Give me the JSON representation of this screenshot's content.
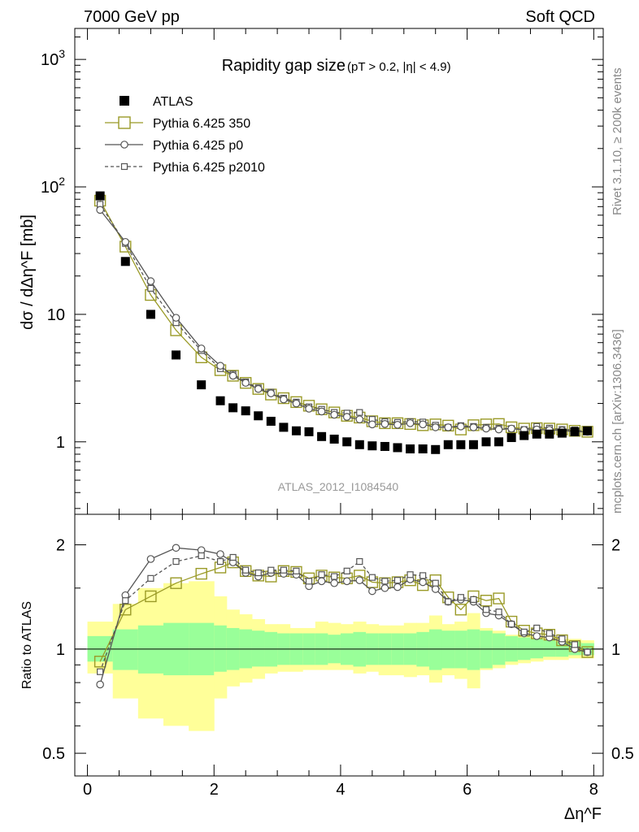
{
  "header": {
    "left": "7000 GeV pp",
    "right": "Soft QCD"
  },
  "side_labels": {
    "rivet": "Rivet 3.1.10, ≥ 200k events",
    "mcplots": "mcplots.cern.ch [arXiv:1306.3436]"
  },
  "analysis_tag": "ATLAS_2012_I1084540",
  "chart_data": [
    {
      "type": "scatter",
      "panel": "main",
      "title": "Rapidity gap size",
      "title_suffix": "(pT > 0.2, |η| < 4.9)",
      "ylabel": "dσ / dΔη^F [mb]",
      "xlabel": "Δη^F",
      "yscale": "log",
      "xlim": [
        -0.2,
        8.15
      ],
      "ylim": [
        0.27,
        1750
      ],
      "x_ticks": [
        "0",
        "2",
        "4",
        "6",
        "8"
      ],
      "y_ticks": [
        "1",
        "10",
        "10^2",
        "10^3"
      ],
      "legend_position": "top-left",
      "x": [
        0.2,
        0.6,
        1.0,
        1.4,
        1.8,
        2.1,
        2.3,
        2.5,
        2.7,
        2.9,
        3.1,
        3.3,
        3.5,
        3.7,
        3.9,
        4.1,
        4.3,
        4.5,
        4.7,
        4.9,
        5.1,
        5.3,
        5.5,
        5.7,
        5.9,
        6.1,
        6.3,
        6.5,
        6.7,
        6.9,
        7.1,
        7.3,
        7.5,
        7.7,
        7.9
      ],
      "series": [
        {
          "name": "ATLAS",
          "style": "filled-square",
          "color": "#000000",
          "values": [
            85,
            26,
            10,
            4.8,
            2.8,
            2.1,
            1.85,
            1.75,
            1.6,
            1.45,
            1.3,
            1.22,
            1.2,
            1.1,
            1.05,
            1.0,
            0.95,
            0.93,
            0.92,
            0.9,
            0.88,
            0.88,
            0.87,
            0.95,
            0.95,
            0.95,
            1.0,
            1.0,
            1.08,
            1.12,
            1.15,
            1.15,
            1.17,
            1.2,
            1.22
          ]
        },
        {
          "name": "Pythia 6.425 350",
          "style": "open-square-line",
          "color": "#9a9a27",
          "values": [
            78,
            34,
            14.2,
            7.5,
            4.6,
            3.65,
            3.3,
            2.9,
            2.6,
            2.35,
            2.2,
            2.05,
            1.92,
            1.8,
            1.7,
            1.6,
            1.55,
            1.45,
            1.4,
            1.4,
            1.38,
            1.35,
            1.37,
            1.34,
            1.25,
            1.35,
            1.37,
            1.38,
            1.3,
            1.27,
            1.28,
            1.27,
            1.25,
            1.22,
            1.2
          ]
        },
        {
          "name": "Pythia 6.425 p0",
          "style": "open-circle-line",
          "color": "#555555",
          "values": [
            66,
            37,
            18.2,
            9.4,
            5.4,
            3.95,
            3.3,
            2.9,
            2.6,
            2.4,
            2.15,
            2.0,
            1.82,
            1.73,
            1.63,
            1.57,
            1.5,
            1.37,
            1.38,
            1.36,
            1.4,
            1.37,
            1.3,
            1.3,
            1.32,
            1.3,
            1.27,
            1.25,
            1.27,
            1.24,
            1.25,
            1.24,
            1.23,
            1.2,
            1.2
          ]
        },
        {
          "name": "Pythia 6.425 p2010",
          "style": "open-square-dashed",
          "color": "#555555",
          "values": [
            73,
            36,
            16,
            8.6,
            5.2,
            3.75,
            3.4,
            2.95,
            2.65,
            2.45,
            2.2,
            2.05,
            1.88,
            1.8,
            1.7,
            1.68,
            1.7,
            1.5,
            1.44,
            1.42,
            1.44,
            1.43,
            1.35,
            1.3,
            1.34,
            1.32,
            1.3,
            1.28,
            1.27,
            1.25,
            1.32,
            1.28,
            1.25,
            1.24,
            1.2
          ]
        }
      ]
    },
    {
      "type": "line",
      "panel": "ratio",
      "ylabel": "Ratio to ATLAS",
      "yscale": "log",
      "xlim": [
        -0.2,
        8.15
      ],
      "ylim": [
        0.43,
        2.45
      ],
      "y_ticks": [
        "0.5",
        "1",
        "2"
      ],
      "reference_line": 1,
      "x": [
        0.2,
        0.6,
        1.0,
        1.4,
        1.8,
        2.1,
        2.3,
        2.5,
        2.7,
        2.9,
        3.1,
        3.3,
        3.5,
        3.7,
        3.9,
        4.1,
        4.3,
        4.5,
        4.7,
        4.9,
        5.1,
        5.3,
        5.5,
        5.7,
        5.9,
        6.1,
        6.3,
        6.5,
        6.7,
        6.9,
        7.1,
        7.3,
        7.5,
        7.7,
        7.9
      ],
      "bins": [
        0,
        0.4,
        0.8,
        1.2,
        1.6,
        2.0,
        2.2,
        2.4,
        2.6,
        2.8,
        3.0,
        3.2,
        3.4,
        3.6,
        3.8,
        4.0,
        4.2,
        4.4,
        4.6,
        4.8,
        5.0,
        5.2,
        5.4,
        5.6,
        5.8,
        6.0,
        6.2,
        6.4,
        6.6,
        6.8,
        7.0,
        7.2,
        7.4,
        7.6,
        7.8,
        8.0
      ],
      "band_stat_lo": [
        0.92,
        0.87,
        0.85,
        0.84,
        0.84,
        0.86,
        0.87,
        0.88,
        0.89,
        0.89,
        0.9,
        0.9,
        0.9,
        0.9,
        0.91,
        0.9,
        0.89,
        0.9,
        0.9,
        0.9,
        0.9,
        0.89,
        0.87,
        0.88,
        0.88,
        0.87,
        0.88,
        0.9,
        0.92,
        0.93,
        0.94,
        0.95,
        0.95,
        0.96,
        0.96
      ],
      "band_stat_hi": [
        1.09,
        1.14,
        1.17,
        1.19,
        1.19,
        1.17,
        1.15,
        1.14,
        1.13,
        1.12,
        1.11,
        1.11,
        1.11,
        1.11,
        1.1,
        1.11,
        1.12,
        1.11,
        1.11,
        1.11,
        1.11,
        1.12,
        1.14,
        1.13,
        1.13,
        1.14,
        1.13,
        1.11,
        1.09,
        1.08,
        1.07,
        1.06,
        1.05,
        1.05,
        1.04
      ],
      "band_total_lo": [
        0.85,
        0.72,
        0.63,
        0.6,
        0.58,
        0.72,
        0.78,
        0.8,
        0.82,
        0.85,
        0.86,
        0.86,
        0.87,
        0.87,
        0.87,
        0.87,
        0.85,
        0.86,
        0.84,
        0.84,
        0.83,
        0.84,
        0.8,
        0.84,
        0.82,
        0.77,
        0.87,
        0.88,
        0.9,
        0.91,
        0.92,
        0.93,
        0.93,
        0.94,
        0.94
      ],
      "band_total_hi": [
        1.2,
        1.35,
        1.5,
        1.55,
        1.57,
        1.42,
        1.3,
        1.26,
        1.22,
        1.18,
        1.18,
        1.15,
        1.15,
        1.2,
        1.19,
        1.18,
        1.2,
        1.18,
        1.17,
        1.17,
        1.19,
        1.19,
        1.25,
        1.18,
        1.2,
        1.27,
        1.15,
        1.13,
        1.1,
        1.1,
        1.09,
        1.08,
        1.07,
        1.07,
        1.06
      ],
      "series": [
        {
          "name": "Pythia 6.425 350",
          "style": "open-square-line",
          "color": "#9a9a27",
          "values": [
            0.92,
            1.3,
            1.42,
            1.55,
            1.65,
            1.72,
            1.78,
            1.68,
            1.63,
            1.62,
            1.68,
            1.67,
            1.6,
            1.63,
            1.61,
            1.6,
            1.63,
            1.56,
            1.55,
            1.56,
            1.58,
            1.53,
            1.58,
            1.41,
            1.3,
            1.42,
            1.38,
            1.4,
            1.2,
            1.13,
            1.11,
            1.1,
            1.06,
            1.02,
            0.98
          ]
        },
        {
          "name": "Pythia 6.425 p0",
          "style": "open-circle-line",
          "color": "#555555",
          "values": [
            0.79,
            1.43,
            1.82,
            1.96,
            1.93,
            1.88,
            1.78,
            1.66,
            1.62,
            1.66,
            1.65,
            1.64,
            1.52,
            1.57,
            1.55,
            1.57,
            1.58,
            1.47,
            1.5,
            1.51,
            1.59,
            1.56,
            1.49,
            1.37,
            1.39,
            1.37,
            1.27,
            1.25,
            1.18,
            1.11,
            1.09,
            1.08,
            1.05,
            1.0,
            0.98
          ]
        },
        {
          "name": "Pythia 6.425 p2010",
          "style": "open-square-dashed",
          "color": "#555555",
          "values": [
            0.86,
            1.38,
            1.6,
            1.79,
            1.86,
            1.79,
            1.84,
            1.69,
            1.66,
            1.69,
            1.69,
            1.68,
            1.57,
            1.64,
            1.62,
            1.68,
            1.79,
            1.61,
            1.57,
            1.58,
            1.64,
            1.63,
            1.55,
            1.37,
            1.41,
            1.39,
            1.3,
            1.28,
            1.18,
            1.12,
            1.15,
            1.11,
            1.07,
            1.03,
            0.98
          ]
        }
      ]
    }
  ]
}
